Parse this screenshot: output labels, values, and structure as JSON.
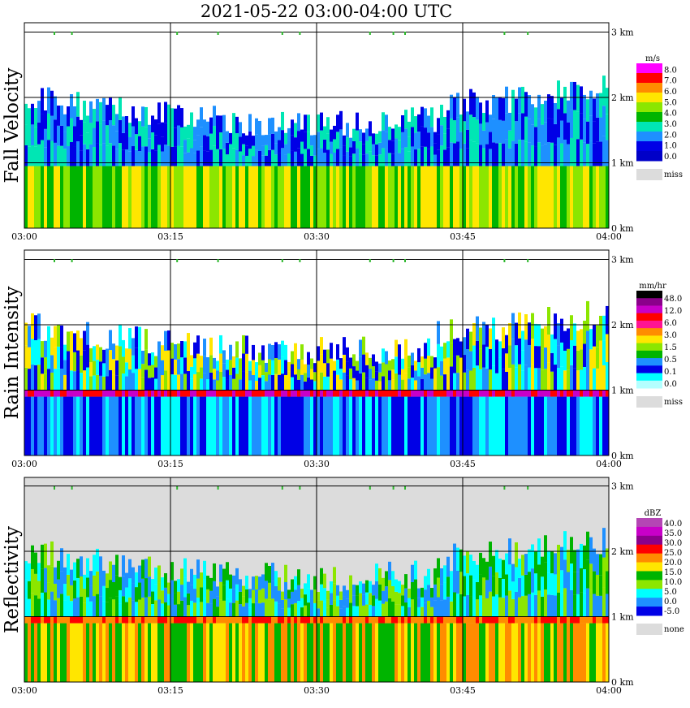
{
  "title": "2021-05-22   03:00-04:00 UTC",
  "colors": {
    "miss": "#dcdcdc",
    "grid": "#000000",
    "marker": "#2db82d"
  },
  "chart_data": [
    {
      "type": "heatmap",
      "ylabel": "Fall Velocity",
      "unit": "m/s",
      "x_ticks": [
        "03:00",
        "03:15",
        "03:30",
        "03:45",
        "04:00"
      ],
      "y_ticks": [
        "0 km",
        "1 km",
        "2 km",
        "3 km"
      ],
      "ylim": [
        0,
        3.1
      ],
      "legend": {
        "unit": "m/s",
        "levels": [
          "8.0",
          "7.0",
          "6.0",
          "5.0",
          "4.0",
          "3.0",
          "2.0",
          "1.0",
          "0.0"
        ],
        "colors": [
          "#ff00ff",
          "#ff0000",
          "#ff8c00",
          "#ffe600",
          "#8ce600",
          "#00b400",
          "#00e6b4",
          "#1e90ff",
          "#0000e6",
          "#0000c8"
        ],
        "miss_label": "miss"
      },
      "bands": {
        "lower": {
          "range_km": [
            0,
            0.95
          ],
          "colors": [
            "#8ce600",
            "#00b400",
            "#ffe600"
          ]
        },
        "upper": {
          "range_km": [
            0.95,
            2.2
          ],
          "colors": [
            "#1e90ff",
            "#0000e6",
            "#00e6b4"
          ]
        }
      }
    },
    {
      "type": "heatmap",
      "ylabel": "Rain Intensity",
      "unit": "mm/hr",
      "x_ticks": [
        "03:00",
        "03:15",
        "03:30",
        "03:45",
        "04:00"
      ],
      "y_ticks": [
        "0 km",
        "1 km",
        "2 km",
        "3 km"
      ],
      "ylim": [
        0,
        3.1
      ],
      "legend": {
        "unit": "mm/hr",
        "levels": [
          "48.0",
          "12.0",
          "6.0",
          "3.0",
          "1.5",
          "0.5",
          "0.1",
          "0.0"
        ],
        "colors": [
          "#000000",
          "#8b008b",
          "#c800c8",
          "#ff0000",
          "#ff1493",
          "#ff8c00",
          "#ffe600",
          "#8ce600",
          "#00b400",
          "#1e90ff",
          "#0000e6",
          "#00ffff",
          "#b4ffff"
        ],
        "miss_label": "miss"
      },
      "bands": {
        "lower": {
          "range_km": [
            0,
            0.9
          ],
          "colors": [
            "#00ffff",
            "#1e90ff",
            "#0000e6"
          ]
        },
        "upper": {
          "range_km": [
            1.0,
            2.2
          ],
          "colors": [
            "#1e90ff",
            "#0000e6",
            "#00ffff",
            "#ffe600",
            "#8ce600"
          ]
        },
        "melting": {
          "range_km": [
            0.9,
            1.0
          ],
          "colors": [
            "#ff0000",
            "#c800c8"
          ]
        }
      }
    },
    {
      "type": "heatmap",
      "ylabel": "Reflectivity",
      "unit": "dBZ",
      "x_ticks": [
        "03:00",
        "03:15",
        "03:30",
        "03:45",
        "04:00"
      ],
      "y_ticks": [
        "0 km",
        "1 km",
        "2 km",
        "3 km"
      ],
      "ylim": [
        0,
        3.1
      ],
      "legend": {
        "unit": "dBZ",
        "levels": [
          "40.0",
          "35.0",
          "30.0",
          "25.0",
          "20.0",
          "15.0",
          "10.0",
          "5.0",
          "0.0",
          "-5.0"
        ],
        "colors": [
          "#b446b4",
          "#c800c8",
          "#8b008b",
          "#ff0000",
          "#ff8c00",
          "#ffe600",
          "#00b400",
          "#8ce600",
          "#00ffff",
          "#1e90ff",
          "#0000e6"
        ],
        "miss_label": "none"
      },
      "bands": {
        "lower": {
          "range_km": [
            0,
            0.9
          ],
          "colors": [
            "#ffe600",
            "#ff8c00",
            "#00b400"
          ]
        },
        "upper": {
          "range_km": [
            1.0,
            2.2
          ],
          "colors": [
            "#00b400",
            "#8ce600",
            "#00ffff",
            "#1e90ff"
          ]
        },
        "melting": {
          "range_km": [
            0.9,
            1.0
          ],
          "colors": [
            "#ff0000",
            "#ff8c00"
          ]
        }
      }
    }
  ]
}
